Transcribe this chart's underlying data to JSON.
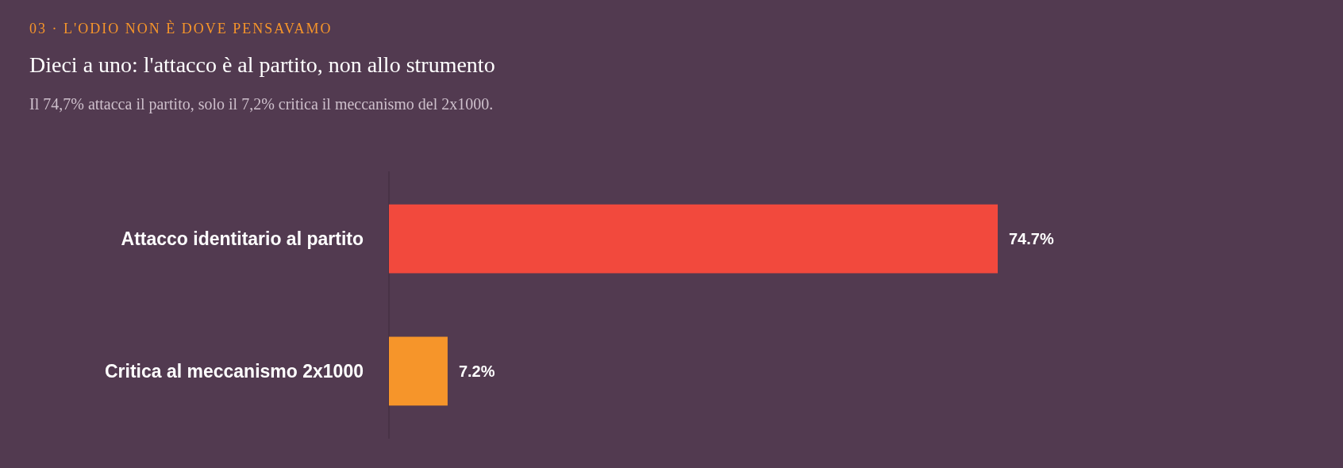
{
  "chart_data": {
    "type": "bar",
    "orientation": "horizontal",
    "annotations": [
      "03 · L'ODIO NON È DOVE PENSAVAMO"
    ],
    "title": "Dieci a uno: l'attacco è al partito, non allo strumento",
    "subtitle": "Il 74,7% attacca il partito, solo il 7,2% critica il meccanismo del 2x1000.",
    "categories": [
      "Attacco identitario al partito",
      "Critica al meccanismo 2x1000"
    ],
    "values": [
      74.7,
      7.2
    ],
    "colors": [
      "#f2493d",
      "#f6952a"
    ],
    "value_labels": [
      "74.7%",
      "7.2%"
    ],
    "tick_labels": "y"
  }
}
